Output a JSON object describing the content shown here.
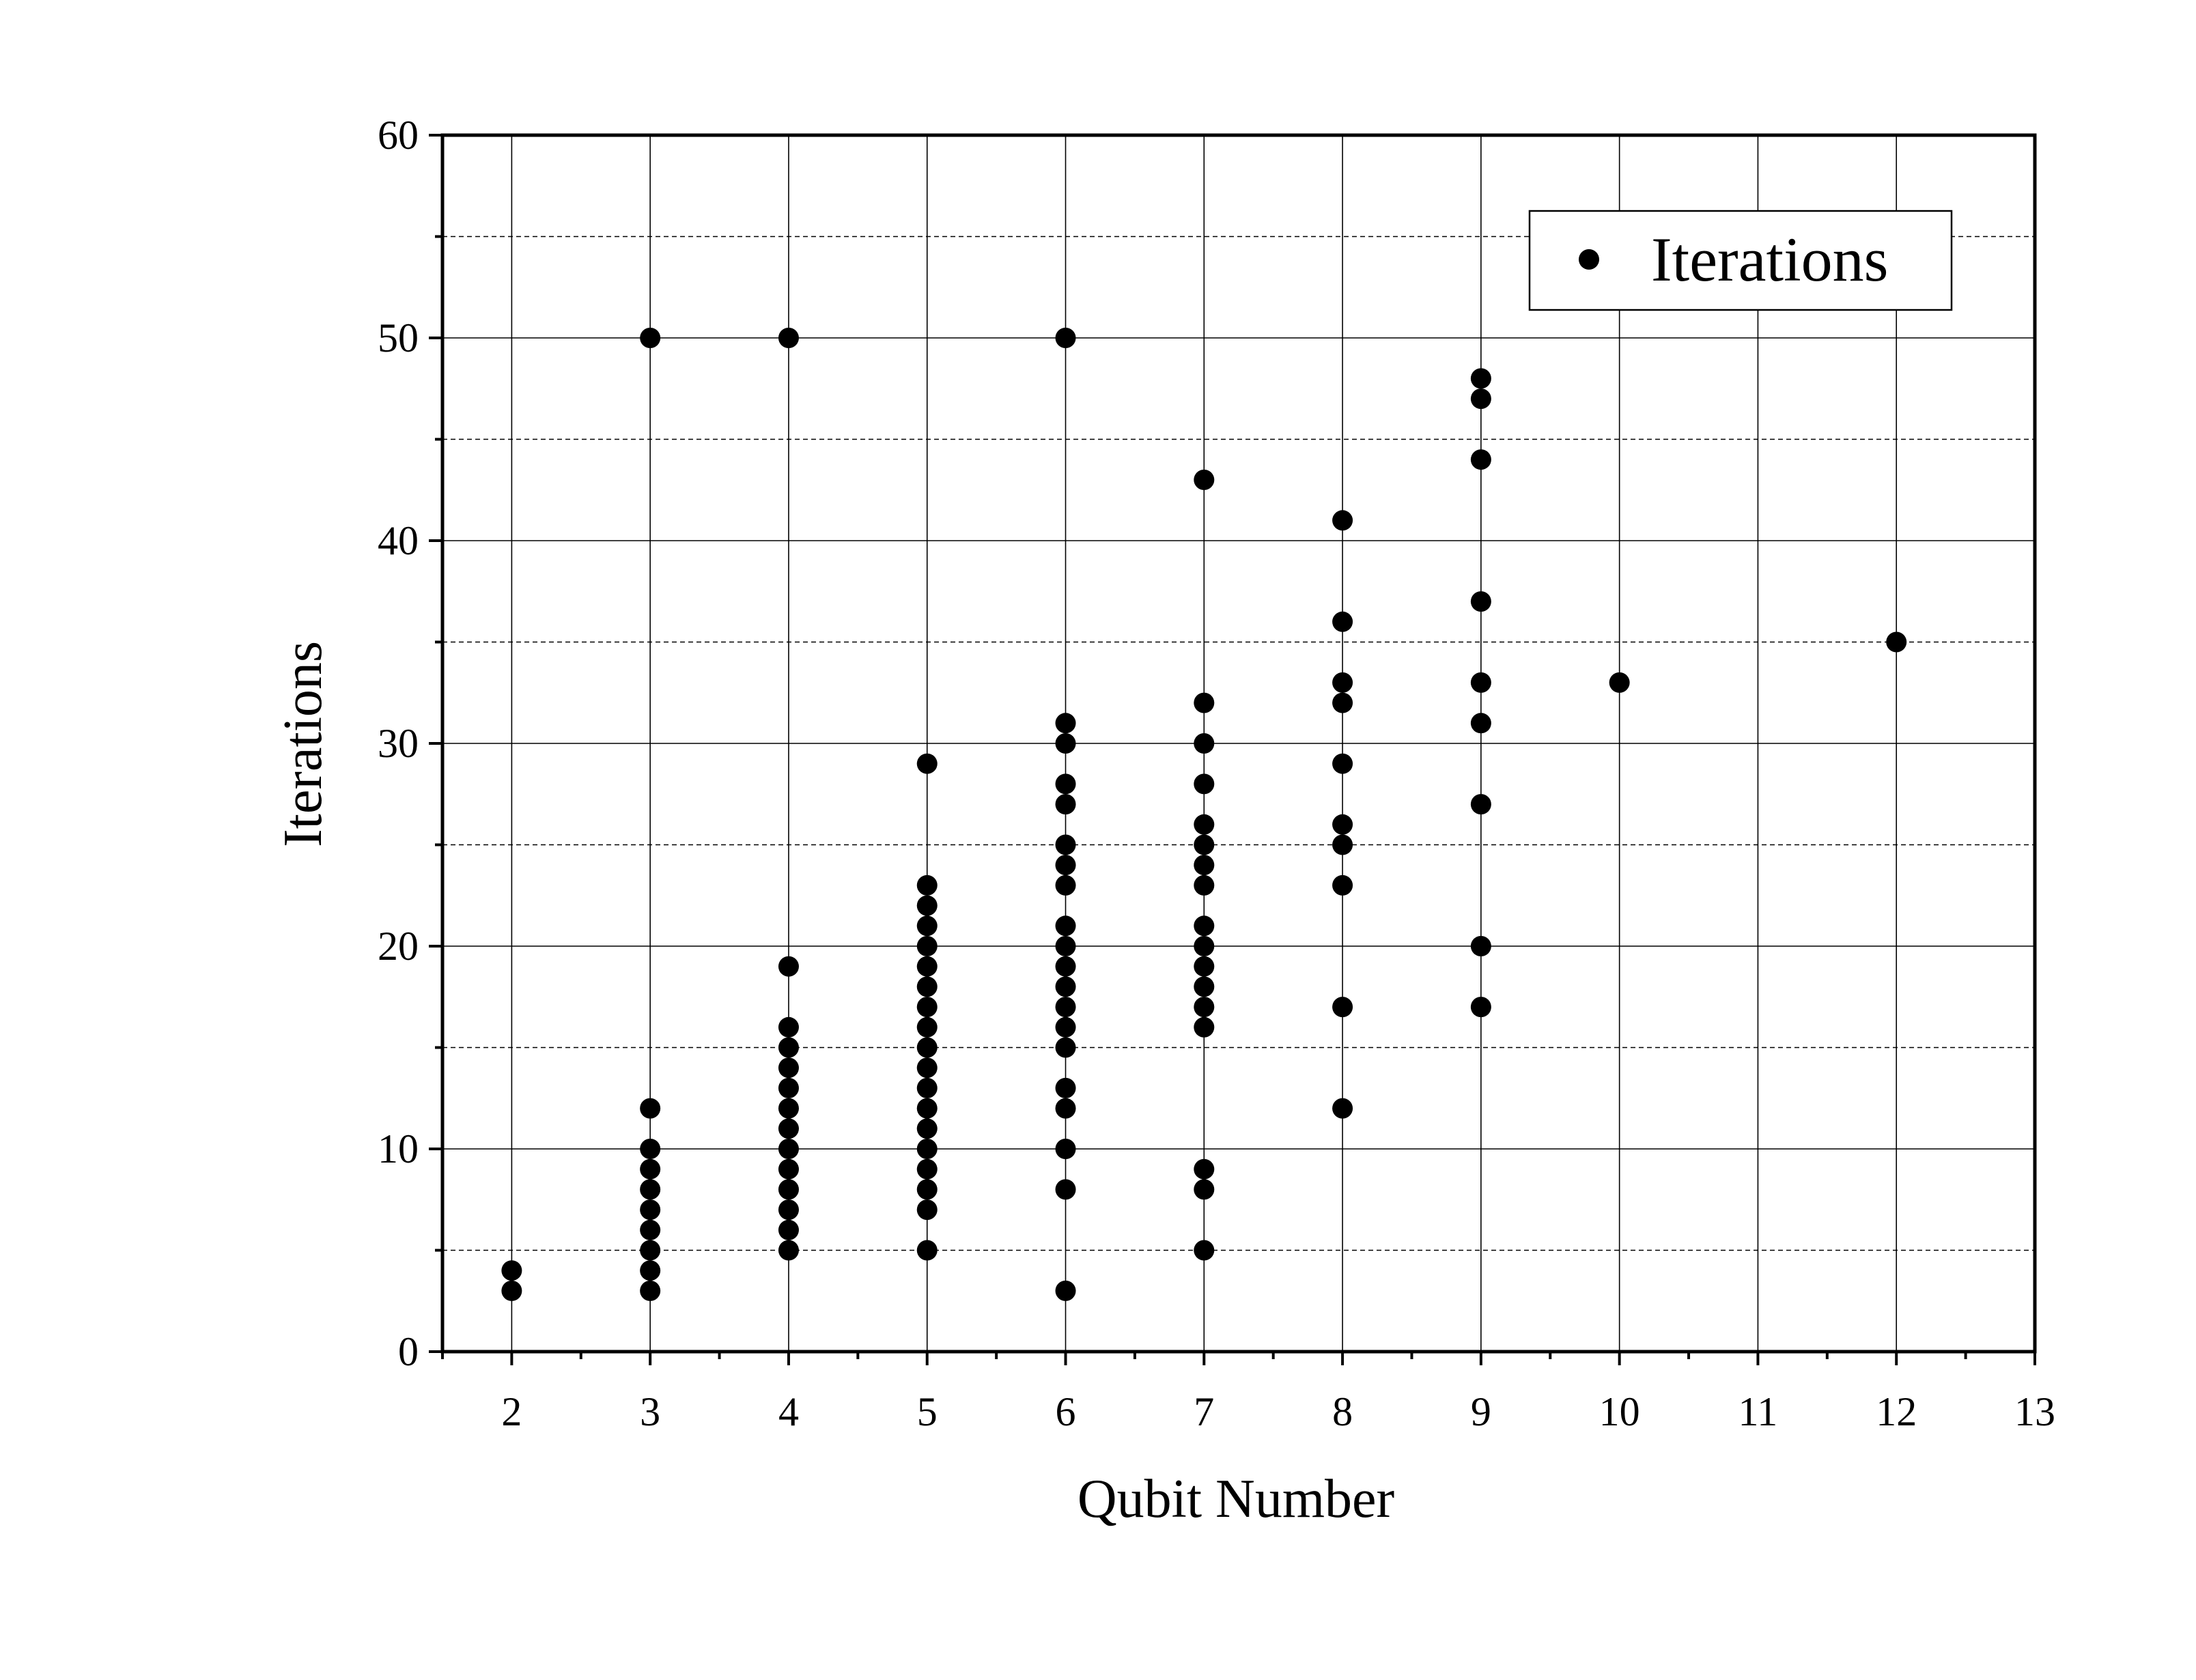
{
  "chart_data": {
    "type": "scatter",
    "title": "",
    "xlabel": "Qubit Number",
    "ylabel": "Iterations",
    "xlim": [
      1.5,
      13
    ],
    "ylim": [
      0,
      60
    ],
    "xticks": [
      "2",
      "3",
      "4",
      "5",
      "6",
      "7",
      "8",
      "9",
      "10",
      "11",
      "12",
      "13"
    ],
    "yticks": [
      "0",
      "10",
      "20",
      "30",
      "40",
      "50",
      "60"
    ],
    "grid": true,
    "legend_position": "top-right",
    "marker_color": "#000000",
    "series": [
      {
        "name": "Iterations",
        "points": [
          [
            2,
            3
          ],
          [
            2,
            4
          ],
          [
            3,
            3
          ],
          [
            3,
            4
          ],
          [
            3,
            5
          ],
          [
            3,
            6
          ],
          [
            3,
            7
          ],
          [
            3,
            8
          ],
          [
            3,
            9
          ],
          [
            3,
            10
          ],
          [
            3,
            12
          ],
          [
            3,
            50
          ],
          [
            4,
            5
          ],
          [
            4,
            6
          ],
          [
            4,
            7
          ],
          [
            4,
            8
          ],
          [
            4,
            9
          ],
          [
            4,
            10
          ],
          [
            4,
            11
          ],
          [
            4,
            12
          ],
          [
            4,
            13
          ],
          [
            4,
            14
          ],
          [
            4,
            15
          ],
          [
            4,
            16
          ],
          [
            4,
            19
          ],
          [
            4,
            50
          ],
          [
            5,
            5
          ],
          [
            5,
            7
          ],
          [
            5,
            8
          ],
          [
            5,
            9
          ],
          [
            5,
            10
          ],
          [
            5,
            11
          ],
          [
            5,
            12
          ],
          [
            5,
            13
          ],
          [
            5,
            14
          ],
          [
            5,
            15
          ],
          [
            5,
            16
          ],
          [
            5,
            17
          ],
          [
            5,
            18
          ],
          [
            5,
            19
          ],
          [
            5,
            20
          ],
          [
            5,
            21
          ],
          [
            5,
            22
          ],
          [
            5,
            23
          ],
          [
            5,
            29
          ],
          [
            6,
            3
          ],
          [
            6,
            8
          ],
          [
            6,
            10
          ],
          [
            6,
            12
          ],
          [
            6,
            13
          ],
          [
            6,
            15
          ],
          [
            6,
            16
          ],
          [
            6,
            17
          ],
          [
            6,
            18
          ],
          [
            6,
            19
          ],
          [
            6,
            20
          ],
          [
            6,
            21
          ],
          [
            6,
            23
          ],
          [
            6,
            24
          ],
          [
            6,
            25
          ],
          [
            6,
            27
          ],
          [
            6,
            28
          ],
          [
            6,
            30
          ],
          [
            6,
            31
          ],
          [
            6,
            50
          ],
          [
            7,
            5
          ],
          [
            7,
            8
          ],
          [
            7,
            9
          ],
          [
            7,
            16
          ],
          [
            7,
            17
          ],
          [
            7,
            18
          ],
          [
            7,
            19
          ],
          [
            7,
            20
          ],
          [
            7,
            21
          ],
          [
            7,
            23
          ],
          [
            7,
            24
          ],
          [
            7,
            25
          ],
          [
            7,
            26
          ],
          [
            7,
            28
          ],
          [
            7,
            30
          ],
          [
            7,
            32
          ],
          [
            7,
            43
          ],
          [
            8,
            12
          ],
          [
            8,
            17
          ],
          [
            8,
            23
          ],
          [
            8,
            25
          ],
          [
            8,
            26
          ],
          [
            8,
            29
          ],
          [
            8,
            32
          ],
          [
            8,
            33
          ],
          [
            8,
            36
          ],
          [
            8,
            41
          ],
          [
            9,
            17
          ],
          [
            9,
            20
          ],
          [
            9,
            27
          ],
          [
            9,
            31
          ],
          [
            9,
            33
          ],
          [
            9,
            37
          ],
          [
            9,
            44
          ],
          [
            9,
            47
          ],
          [
            9,
            48
          ],
          [
            10,
            33
          ],
          [
            12,
            35
          ]
        ]
      }
    ]
  }
}
